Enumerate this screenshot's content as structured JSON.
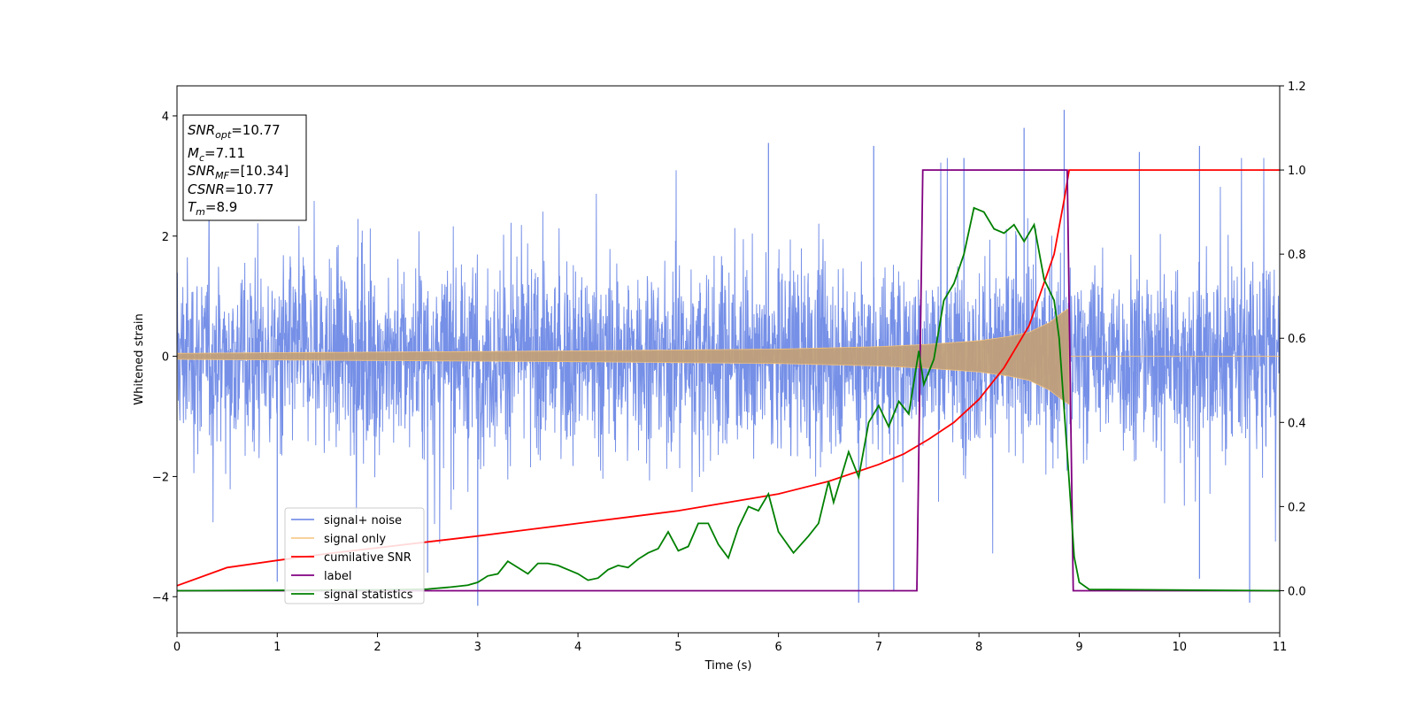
{
  "chart_data": {
    "type": "line",
    "xlabel": "Time (s)",
    "ylabel": "Whitened strain",
    "xlim": [
      0,
      11
    ],
    "ylim": [
      -4.6,
      4.5
    ],
    "y2lim": [
      -0.1,
      1.2
    ],
    "x_ticks": [
      0,
      1,
      2,
      3,
      4,
      5,
      6,
      7,
      8,
      9,
      10,
      11
    ],
    "y_ticks": [
      -4,
      -2,
      0,
      2,
      4
    ],
    "y2_ticks": [
      "0.0",
      "0.2",
      "0.4",
      "0.6",
      "0.8",
      "1.0",
      "1.2"
    ],
    "grid": false,
    "legend_position": "lower-left",
    "info_box": {
      "snr_opt": "10.77",
      "mc": "7.11",
      "snr_mf": "[10.34]",
      "csnr": "10.77",
      "tm": "8.9"
    },
    "series": [
      {
        "name": "signal+ noise",
        "color": "#6a87e5",
        "axis": "left",
        "kind": "noise",
        "x_range": [
          0,
          11
        ],
        "amplitude_typical": 1.0,
        "extreme_values": [
          {
            "x": 6.8,
            "y": -4.1
          },
          {
            "x": 8.85,
            "y": 4.1
          },
          {
            "x": 3.0,
            "y": -4.15
          },
          {
            "x": 10.7,
            "y": -4.1
          },
          {
            "x": 8.45,
            "y": 3.8
          },
          {
            "x": 5.9,
            "y": 3.55
          },
          {
            "x": 7.15,
            "y": -3.9
          },
          {
            "x": 10.2,
            "y": 3.5
          },
          {
            "x": 6.95,
            "y": 3.5
          },
          {
            "x": 10.2,
            "y": -3.7
          },
          {
            "x": 1.0,
            "y": -3.75
          },
          {
            "x": 2.5,
            "y": -3.6
          },
          {
            "x": 9.6,
            "y": 3.4
          },
          {
            "x": 7.85,
            "y": 3.3
          }
        ]
      },
      {
        "name": "signal only",
        "color": "#f5c27a",
        "axis": "left",
        "kind": "chirp",
        "t_merger": 8.9,
        "envelope": [
          [
            0,
            0.05
          ],
          [
            2,
            0.07
          ],
          [
            4,
            0.09
          ],
          [
            6,
            0.12
          ],
          [
            7,
            0.16
          ],
          [
            7.5,
            0.2
          ],
          [
            8,
            0.26
          ],
          [
            8.3,
            0.33
          ],
          [
            8.5,
            0.4
          ],
          [
            8.7,
            0.56
          ],
          [
            8.85,
            0.75
          ],
          [
            8.9,
            0.8
          ]
        ]
      },
      {
        "name": "cumilative SNR",
        "color": "#ff0000",
        "axis": "right",
        "x": [
          0,
          0.5,
          1,
          1.5,
          2,
          2.5,
          3,
          3.5,
          4,
          4.5,
          5,
          5.5,
          6,
          6.5,
          7,
          7.25,
          7.5,
          7.75,
          8,
          8.25,
          8.5,
          8.75,
          8.85,
          8.9,
          9.0,
          10,
          11
        ],
        "y": [
          0.012,
          0.055,
          0.072,
          0.088,
          0.102,
          0.116,
          0.13,
          0.145,
          0.16,
          0.175,
          0.19,
          0.21,
          0.23,
          0.26,
          0.3,
          0.325,
          0.36,
          0.4,
          0.455,
          0.53,
          0.63,
          0.8,
          0.93,
          1.0,
          1.0,
          1.0,
          1.0
        ]
      },
      {
        "name": "label",
        "color": "#800080",
        "axis": "right",
        "x": [
          0,
          7.38,
          7.44,
          8.88,
          8.94,
          11
        ],
        "y": [
          0,
          0,
          1,
          1,
          0,
          0
        ]
      },
      {
        "name": "signal statistics",
        "color": "#008000",
        "axis": "right",
        "x": [
          0,
          1,
          2,
          2.5,
          2.7,
          2.9,
          3.0,
          3.1,
          3.2,
          3.3,
          3.4,
          3.5,
          3.6,
          3.7,
          3.8,
          3.9,
          4.0,
          4.1,
          4.2,
          4.3,
          4.4,
          4.5,
          4.6,
          4.7,
          4.8,
          4.9,
          5.0,
          5.1,
          5.2,
          5.3,
          5.4,
          5.5,
          5.6,
          5.7,
          5.8,
          5.9,
          6.0,
          6.15,
          6.3,
          6.4,
          6.5,
          6.55,
          6.6,
          6.7,
          6.8,
          6.9,
          7.0,
          7.1,
          7.2,
          7.3,
          7.4,
          7.45,
          7.55,
          7.65,
          7.75,
          7.85,
          7.95,
          8.05,
          8.15,
          8.25,
          8.35,
          8.45,
          8.55,
          8.65,
          8.75,
          8.8,
          8.9,
          8.95,
          9.0,
          9.1,
          11
        ],
        "y": [
          0.0,
          0.001,
          0.002,
          0.004,
          0.008,
          0.013,
          0.02,
          0.035,
          0.04,
          0.07,
          0.055,
          0.04,
          0.065,
          0.065,
          0.06,
          0.05,
          0.04,
          0.025,
          0.03,
          0.05,
          0.06,
          0.055,
          0.075,
          0.09,
          0.1,
          0.14,
          0.095,
          0.105,
          0.16,
          0.16,
          0.11,
          0.078,
          0.15,
          0.2,
          0.19,
          0.23,
          0.14,
          0.09,
          0.13,
          0.16,
          0.26,
          0.21,
          0.25,
          0.33,
          0.27,
          0.4,
          0.44,
          0.39,
          0.45,
          0.42,
          0.57,
          0.49,
          0.55,
          0.69,
          0.73,
          0.8,
          0.91,
          0.9,
          0.86,
          0.85,
          0.87,
          0.83,
          0.87,
          0.74,
          0.69,
          0.6,
          0.26,
          0.08,
          0.02,
          0.003,
          0.0
        ]
      }
    ]
  }
}
